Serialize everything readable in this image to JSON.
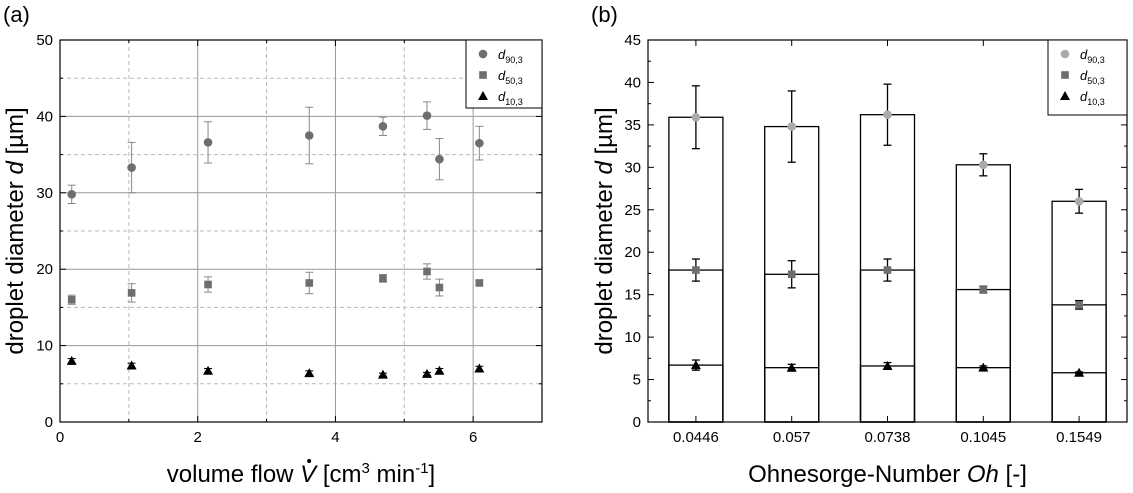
{
  "chart_data": [
    {
      "panel_label": "(a)",
      "type": "scatter",
      "xlabel": {
        "pre": "volume flow ",
        "var": "V",
        "post1": " [cm",
        "sup1": "3",
        "post2": " min",
        "sup2": "-1",
        "post3": "]"
      },
      "ylabel": {
        "pre": "droplet diameter ",
        "var": "d",
        "post": " [µm]"
      },
      "xlim": [
        0,
        7
      ],
      "ylim": [
        0,
        50
      ],
      "xticks": [
        0,
        2,
        4,
        6
      ],
      "yticks": [
        0,
        10,
        20,
        30,
        40,
        50
      ],
      "grid": "major solid, minor dashed",
      "legend_position": "top-right",
      "series": [
        {
          "name": "d90,3",
          "label_main": "d",
          "label_sub": "90,3",
          "marker": "circle",
          "color": "#6e6e6e",
          "x": [
            0.17,
            1.04,
            2.15,
            3.62,
            4.69,
            5.33,
            5.51,
            6.09
          ],
          "y": [
            29.8,
            33.3,
            36.6,
            37.5,
            38.7,
            40.1,
            34.4,
            36.5
          ],
          "err": [
            1.2,
            3.3,
            2.7,
            3.7,
            1.2,
            1.8,
            2.7,
            2.2
          ]
        },
        {
          "name": "d50,3",
          "label_main": "d",
          "label_sub": "50,3",
          "marker": "square",
          "color": "#6e6e6e",
          "x": [
            0.17,
            1.04,
            2.15,
            3.62,
            4.69,
            5.33,
            5.51,
            6.09
          ],
          "y": [
            16.0,
            16.9,
            18.0,
            18.2,
            18.8,
            19.7,
            17.6,
            18.2
          ],
          "err": [
            0.6,
            1.2,
            1.0,
            1.4,
            0.5,
            1.0,
            1.1,
            0.3
          ]
        },
        {
          "name": "d10,3",
          "label_main": "d",
          "label_sub": "10,3",
          "marker": "triangle",
          "color": "#000000",
          "x": [
            0.17,
            1.04,
            2.15,
            3.62,
            4.69,
            5.33,
            5.51,
            6.09
          ],
          "y": [
            8.0,
            7.4,
            6.7,
            6.4,
            6.2,
            6.3,
            6.7,
            7.0
          ],
          "err": [
            0.3,
            0.3,
            0.3,
            0.3,
            0.2,
            0.2,
            0.3,
            0.3
          ]
        }
      ]
    },
    {
      "panel_label": "(b)",
      "type": "bar",
      "xlabel": {
        "pre": "Ohnesorge-Number ",
        "var": "Oh",
        "post": " [-]"
      },
      "ylabel": {
        "pre": "droplet diameter ",
        "var": "d",
        "post": " [µm]"
      },
      "ylim": [
        0,
        45
      ],
      "yticks": [
        0,
        5,
        10,
        15,
        20,
        25,
        30,
        35,
        40,
        45
      ],
      "grid": "off",
      "legend_position": "top-right",
      "categories": [
        "0.0446",
        "0.057",
        "0.0738",
        "0.1045",
        "0.1549"
      ],
      "series": [
        {
          "name": "d90,3",
          "label_main": "d",
          "label_sub": "90,3",
          "marker": "circle",
          "color": "#aaaaaa",
          "values": [
            35.9,
            34.8,
            36.2,
            30.3,
            26.0
          ],
          "err": [
            3.7,
            4.2,
            3.6,
            1.3,
            1.4
          ]
        },
        {
          "name": "d50,3",
          "label_main": "d",
          "label_sub": "50,3",
          "marker": "square",
          "color": "#6e6e6e",
          "values": [
            17.9,
            17.4,
            17.9,
            15.6,
            13.8
          ],
          "err": [
            1.3,
            1.6,
            1.3,
            0.4,
            0.5
          ]
        },
        {
          "name": "d10,3",
          "label_main": "d",
          "label_sub": "10,3",
          "marker": "triangle",
          "color": "#000000",
          "values": [
            6.7,
            6.4,
            6.6,
            6.4,
            5.8
          ],
          "err": [
            0.6,
            0.4,
            0.4,
            0.2,
            0.1
          ]
        }
      ]
    }
  ]
}
